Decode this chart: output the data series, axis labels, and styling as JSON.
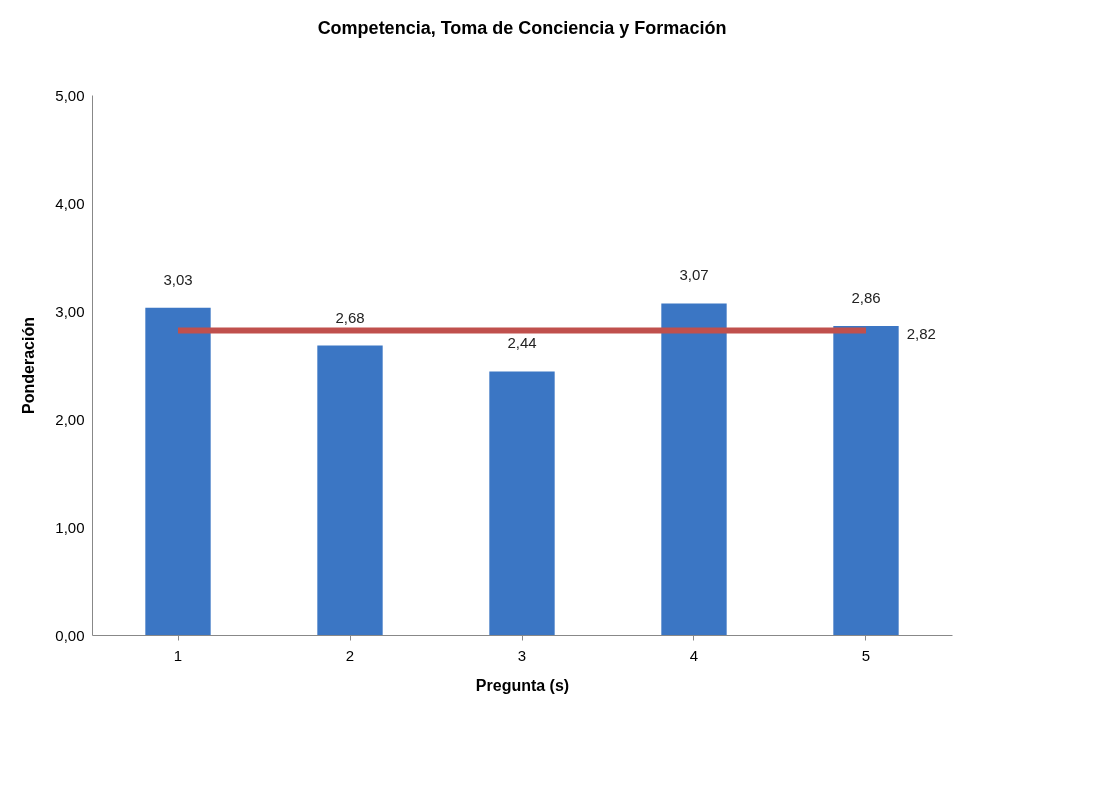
{
  "chart_data": {
    "type": "bar",
    "title": "Competencia, Toma de Conciencia y Formación",
    "xlabel": "Pregunta (s)",
    "ylabel": "Ponderación",
    "categories": [
      "1",
      "2",
      "3",
      "4",
      "5"
    ],
    "values": [
      3.03,
      2.68,
      2.44,
      3.07,
      2.86
    ],
    "value_labels": [
      "3,03",
      "2,68",
      "2,44",
      "3,07",
      "2,86"
    ],
    "color": "#3b76c4",
    "ylim": [
      0,
      5
    ],
    "yticks": [
      {
        "value": 0,
        "label": "0,00"
      },
      {
        "value": 1,
        "label": "1,00"
      },
      {
        "value": 2,
        "label": "2,00"
      },
      {
        "value": 3,
        "label": "3,00"
      },
      {
        "value": 4,
        "label": "4,00"
      },
      {
        "value": 5,
        "label": "5,00"
      }
    ],
    "ref_lines": [
      {
        "axis": "y",
        "value": 2.82,
        "label": "2,82",
        "color": "#c0504d"
      }
    ],
    "grid": false
  }
}
